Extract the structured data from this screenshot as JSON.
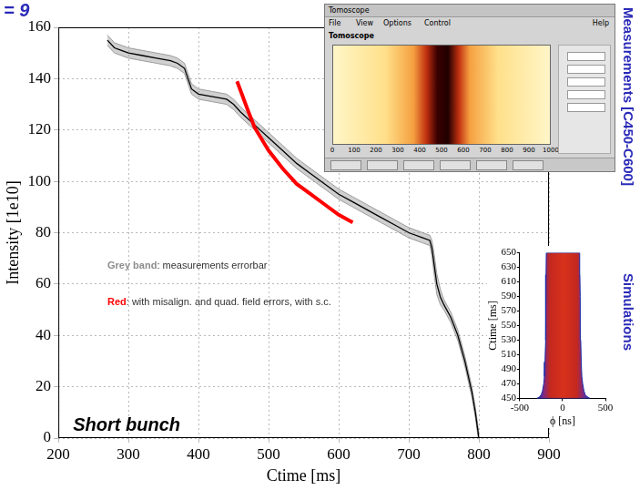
{
  "header": "= 9",
  "chart_data": [
    {
      "type": "line",
      "x_label": "Ctime [ms]",
      "y_label": "Intensity [1e10]",
      "xlim": [
        200,
        900
      ],
      "xticks": [
        200,
        300,
        400,
        500,
        600,
        700,
        800,
        900
      ],
      "ylim": [
        0,
        160
      ],
      "yticks": [
        0,
        20,
        40,
        60,
        80,
        100,
        120,
        140,
        160
      ],
      "grid": true,
      "series": [
        {
          "color": "#000000",
          "x": [
            270,
            280,
            290,
            300,
            320,
            340,
            360,
            370,
            380,
            385,
            390,
            400,
            420,
            440,
            450,
            460,
            480,
            500,
            520,
            540,
            560,
            580,
            600,
            620,
            640,
            660,
            680,
            700,
            720,
            730,
            733,
            736,
            740,
            745,
            750,
            760,
            770,
            780,
            790,
            795,
            800
          ],
          "values": [
            155,
            152,
            151,
            150,
            149,
            148,
            147,
            146,
            144,
            140,
            136,
            134,
            133,
            132,
            130,
            127,
            122,
            117,
            112,
            107,
            103,
            99,
            95,
            92,
            89,
            86,
            83,
            80,
            78,
            77,
            74,
            68,
            60,
            55,
            52,
            47,
            40,
            30,
            18,
            10,
            0
          ],
          "error": [
            2,
            2,
            2,
            2,
            2,
            2,
            2,
            2,
            2,
            2,
            2,
            2,
            2,
            2,
            2,
            2,
            2,
            2,
            2,
            2,
            2,
            2,
            2,
            2,
            2,
            2,
            2,
            2,
            2,
            2,
            3,
            4,
            4,
            3,
            2,
            2,
            2,
            2,
            2,
            2,
            2
          ]
        },
        {
          "color": "#ff0000",
          "x": [
            455,
            470,
            480,
            500,
            520,
            540,
            560,
            580,
            600,
            620
          ],
          "values": [
            139,
            128,
            121,
            112,
            105,
            99,
            95,
            91,
            87,
            84
          ]
        }
      ],
      "annotations": [
        "Grey band: measurements errorbar",
        "Red: with misalign. and quad. field errors, with s.c.",
        "Short bunch"
      ]
    },
    {
      "type": "area",
      "title": "Simulations",
      "x_label": "ϕ [ns]",
      "y_label": "Ctime [ms]",
      "xlim": [
        -500,
        500
      ],
      "xticks": [
        -500,
        0,
        500
      ],
      "ylim": [
        450,
        650
      ],
      "yticks": [
        450,
        470,
        490,
        510,
        530,
        550,
        570,
        590,
        610,
        630,
        650
      ],
      "grid": false,
      "y": [
        450,
        452,
        455,
        460,
        470,
        480,
        500,
        530,
        560,
        590,
        620,
        650
      ],
      "left": [
        -300,
        -270,
        -250,
        -235,
        -220,
        -212,
        -205,
        -200,
        -197,
        -195,
        -193,
        -190
      ],
      "right": [
        320,
        290,
        265,
        250,
        235,
        225,
        218,
        212,
        208,
        205,
        202,
        200
      ]
    }
  ],
  "screenshot": {
    "window_title": "Tomoscope",
    "menu": [
      "File",
      "View",
      "Options",
      "Control",
      "Help"
    ],
    "panel_title": "Tomoscope",
    "xlim": [
      0,
      1000
    ],
    "xticks": [
      0,
      100,
      200,
      300,
      400,
      500,
      600,
      700,
      800,
      900,
      1000
    ],
    "caption": "Measurements [C450-C600]"
  }
}
